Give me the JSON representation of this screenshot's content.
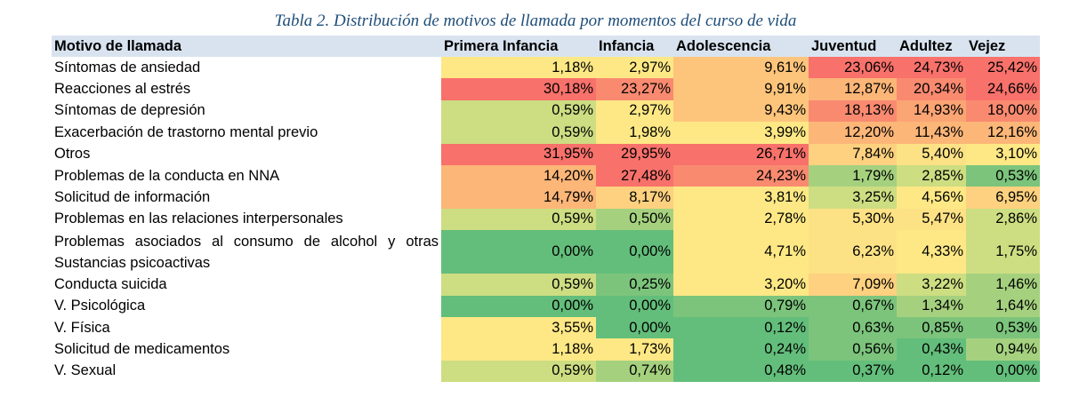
{
  "caption": "Tabla 2. Distribución de motivos de llamada por momentos del curso de vida",
  "headers": [
    "Motivo de llamada",
    "Primera Infancia",
    "Infancia",
    "Adolescencia",
    "Juventud",
    "Adultez",
    "Vejez"
  ],
  "rows": [
    {
      "label": "Síntomas de ansiedad",
      "values": [
        "1,18%",
        "2,97%",
        "9,61%",
        "23,06%",
        "24,73%",
        "25,42%"
      ],
      "colors": [
        "#fde885",
        "#fde885",
        "#fdc57b",
        "#f8716b",
        "#f8716b",
        "#f8716b"
      ]
    },
    {
      "label": "Reacciones al estrés",
      "values": [
        "30,18%",
        "23,27%",
        "9,91%",
        "12,87%",
        "20,34%",
        "24,66%"
      ],
      "colors": [
        "#f8716b",
        "#f98a70",
        "#fdc57b",
        "#fcb678",
        "#f98a70",
        "#f8716b"
      ]
    },
    {
      "label": "Síntomas de depresión",
      "values": [
        "0,59%",
        "2,97%",
        "9,43%",
        "18,13%",
        "14,93%",
        "18,00%"
      ],
      "colors": [
        "#cddd82",
        "#fde885",
        "#fdc57b",
        "#f98a70",
        "#fba474",
        "#f98a70"
      ]
    },
    {
      "label": "Exacerbación de trastorno mental previo",
      "values": [
        "0,59%",
        "1,98%",
        "3,99%",
        "12,20%",
        "11,43%",
        "12,16%"
      ],
      "colors": [
        "#cddd82",
        "#fde885",
        "#fde885",
        "#fcb678",
        "#fcb678",
        "#fcb678"
      ]
    },
    {
      "label": "Otros",
      "values": [
        "31,95%",
        "29,95%",
        "26,71%",
        "7,84%",
        "5,40%",
        "3,10%"
      ],
      "colors": [
        "#f8716b",
        "#f8716b",
        "#f8716b",
        "#fdd17f",
        "#fde285",
        "#fde885"
      ]
    },
    {
      "label": "Problemas de la conducta en NNA",
      "values": [
        "14,20%",
        "27,48%",
        "24,23%",
        "1,79%",
        "2,85%",
        "0,53%"
      ],
      "colors": [
        "#fcb678",
        "#f8716b",
        "#f98a70",
        "#a5d17f",
        "#cddd82",
        "#7cc47c"
      ]
    },
    {
      "label": "Solicitud de información",
      "values": [
        "14,79%",
        "8,17%",
        "3,81%",
        "3,25%",
        "4,56%",
        "6,95%"
      ],
      "colors": [
        "#fcb678",
        "#fdd17f",
        "#fde885",
        "#cddd82",
        "#fde885",
        "#fdd17f"
      ]
    },
    {
      "label": "Problemas en las relaciones interpersonales",
      "values": [
        "0,59%",
        "0,50%",
        "2,78%",
        "5,30%",
        "5,47%",
        "2,86%"
      ],
      "colors": [
        "#cddd82",
        "#a5d17f",
        "#fde885",
        "#fde285",
        "#fde285",
        "#cddd82"
      ]
    },
    {
      "label": "Problemas asociados al consumo de alcohol y otras Sustancias psicoactivas",
      "values": [
        "0,00%",
        "0,00%",
        "4,71%",
        "6,23%",
        "4,33%",
        "1,75%"
      ],
      "colors": [
        "#63be7b",
        "#63be7b",
        "#fde885",
        "#fde285",
        "#fde885",
        "#cddd82"
      ],
      "tall": true
    },
    {
      "label": "Conducta suicida",
      "values": [
        "0,59%",
        "0,25%",
        "3,20%",
        "7,09%",
        "3,22%",
        "1,46%"
      ],
      "colors": [
        "#cddd82",
        "#7cc47c",
        "#fde885",
        "#fdd17f",
        "#cddd82",
        "#a5d17f"
      ]
    },
    {
      "label": "V. Psicológica",
      "values": [
        "0,00%",
        "0,00%",
        "0,79%",
        "0,67%",
        "1,34%",
        "1,64%"
      ],
      "colors": [
        "#63be7b",
        "#63be7b",
        "#7cc47c",
        "#7cc47c",
        "#a5d17f",
        "#a5d17f"
      ]
    },
    {
      "label": "V. Física",
      "values": [
        "3,55%",
        "0,00%",
        "0,12%",
        "0,63%",
        "0,85%",
        "0,53%"
      ],
      "colors": [
        "#fde885",
        "#63be7b",
        "#63be7b",
        "#7cc47c",
        "#7cc47c",
        "#7cc47c"
      ]
    },
    {
      "label": "Solicitud de medicamentos",
      "values": [
        "1,18%",
        "1,73%",
        "0,24%",
        "0,56%",
        "0,43%",
        "0,94%"
      ],
      "colors": [
        "#fde885",
        "#fde885",
        "#63be7b",
        "#7cc47c",
        "#63be7b",
        "#a5d17f"
      ]
    },
    {
      "label": "V. Sexual",
      "values": [
        "0,59%",
        "0,74%",
        "0,48%",
        "0,37%",
        "0,12%",
        "0,00%"
      ],
      "colors": [
        "#cddd82",
        "#a5d17f",
        "#63be7b",
        "#63be7b",
        "#63be7b",
        "#63be7b"
      ]
    }
  ]
}
